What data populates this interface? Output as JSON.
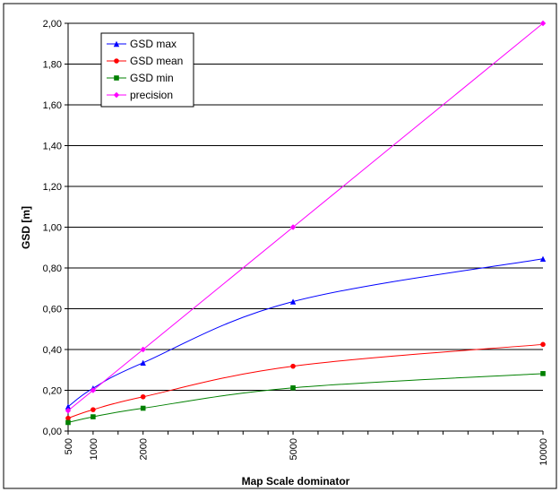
{
  "chart_data": {
    "type": "line",
    "xlabel": "Map Scale dominator",
    "ylabel": "GSD [m]",
    "x": [
      500,
      1000,
      2000,
      5000,
      10000
    ],
    "xlim": [
      500,
      10000
    ],
    "ylim": [
      0,
      2
    ],
    "x_ticks": [
      "500",
      "1000",
      "2000",
      "5000",
      "10000"
    ],
    "y_ticks": [
      "0,00",
      "0,20",
      "0,40",
      "0,60",
      "0,80",
      "1,00",
      "1,20",
      "1,40",
      "1,60",
      "1,80",
      "2,00"
    ],
    "grid": "horizontal",
    "legend_position": "top-left",
    "series": [
      {
        "name": "GSD max",
        "color": "#0000ff",
        "marker": "triangle",
        "values": [
          0.12,
          0.21,
          0.335,
          0.635,
          0.845
        ]
      },
      {
        "name": "GSD mean",
        "color": "#ff0000",
        "marker": "circle",
        "values": [
          0.063,
          0.105,
          0.168,
          0.318,
          0.425
        ]
      },
      {
        "name": "GSD min",
        "color": "#008000",
        "marker": "square",
        "values": [
          0.042,
          0.07,
          0.112,
          0.212,
          0.282
        ]
      },
      {
        "name": "precision",
        "color": "#ff00ff",
        "marker": "diamond",
        "values": [
          0.1,
          0.2,
          0.4,
          1.0,
          2.0
        ]
      }
    ]
  }
}
